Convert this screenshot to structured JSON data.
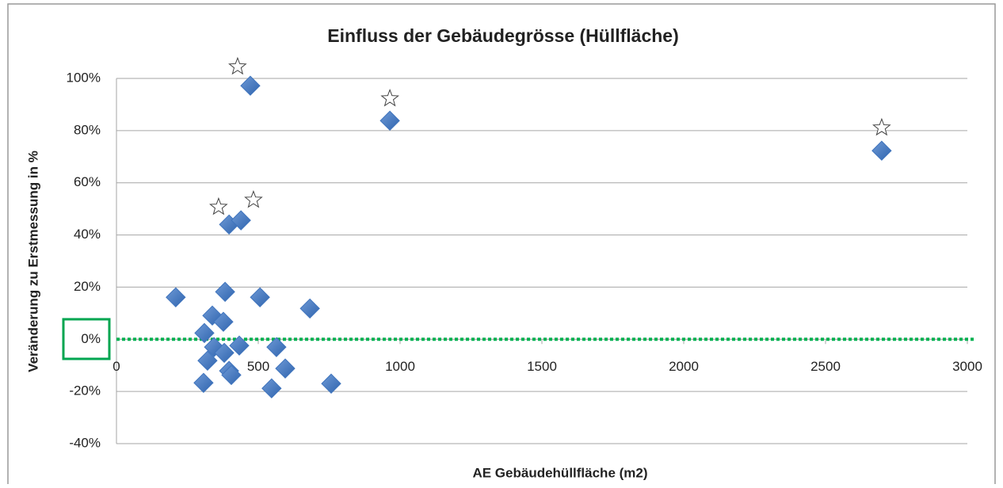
{
  "chart_data": {
    "type": "scatter",
    "title": "Einfluss der Gebäudegrösse (Hüllfläche)",
    "x_label": "AE Gebäudehüllfläche  (m2)",
    "y_label": "Veränderung zu Erstmessung in %",
    "xlim": [
      0,
      3000
    ],
    "xticks": [
      0,
      500,
      1000,
      1500,
      2000,
      2500,
      3000
    ],
    "ylim": [
      -40,
      100
    ],
    "yticks": [
      {
        "value": -40,
        "label": "-40%"
      },
      {
        "value": -20,
        "label": "-20%"
      },
      {
        "value": 0,
        "label": "0%"
      },
      {
        "value": 20,
        "label": "20%"
      },
      {
        "value": 40,
        "label": "40%"
      },
      {
        "value": 60,
        "label": "60%"
      },
      {
        "value": 80,
        "label": "80%"
      },
      {
        "value": 100,
        "label": "100%"
      }
    ],
    "grid": true,
    "reference_line": {
      "value": 0,
      "color": "#00b050"
    },
    "series": [
      {
        "marker": "diamond",
        "color": "#3f74bd",
        "x": [
          209,
          472,
          964,
          2698,
          397,
          439,
          383,
          506,
          682,
          338,
          377,
          310,
          344,
          380,
          433,
          564,
          321,
          397,
          405,
          595,
          307,
          547,
          757
        ],
        "y": [
          16.1,
          97.2,
          83.8,
          72.3,
          44.0,
          45.6,
          18.2,
          16.1,
          11.8,
          9.1,
          6.7,
          2.4,
          -3.0,
          -5.2,
          -2.4,
          -3.0,
          -8.2,
          -12.1,
          -13.7,
          -11.2,
          -16.7,
          -18.8,
          -17.0
        ]
      },
      {
        "marker": "star",
        "color": "#ffffff",
        "x": [
          427,
          964,
          2698,
          360,
          483
        ],
        "y": [
          104.5,
          92.3,
          81.1,
          50.7,
          53.4
        ]
      }
    ]
  }
}
